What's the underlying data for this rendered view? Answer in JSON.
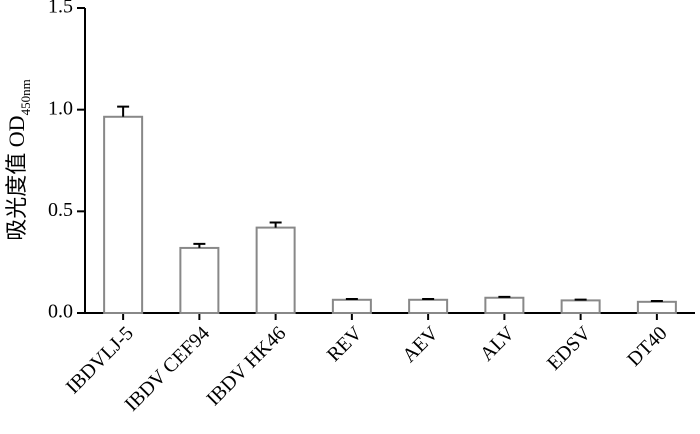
{
  "chart_data": {
    "type": "bar",
    "y_label": {
      "text": "吸光度值 OD",
      "subscript": "450nm"
    },
    "categories": [
      "IBDVLJ-5",
      "IBDV CEF94",
      "IBDV HK46",
      "REV",
      "AEV",
      "ALV",
      "EDSV",
      "DT40"
    ],
    "values": [
      0.965,
      0.32,
      0.42,
      0.065,
      0.065,
      0.075,
      0.062,
      0.055
    ],
    "errors": [
      0.05,
      0.02,
      0.025,
      0.004,
      0.004,
      0.004,
      0.004,
      0.004
    ],
    "color": "#ffffff",
    "edge_color": "#888888",
    "ylim": [
      0,
      1.5
    ],
    "yticks": [
      {
        "value": 0,
        "label": "0.0"
      },
      0.5,
      {
        "value": 1,
        "label": "1.0"
      },
      1.5
    ],
    "grid": false
  }
}
